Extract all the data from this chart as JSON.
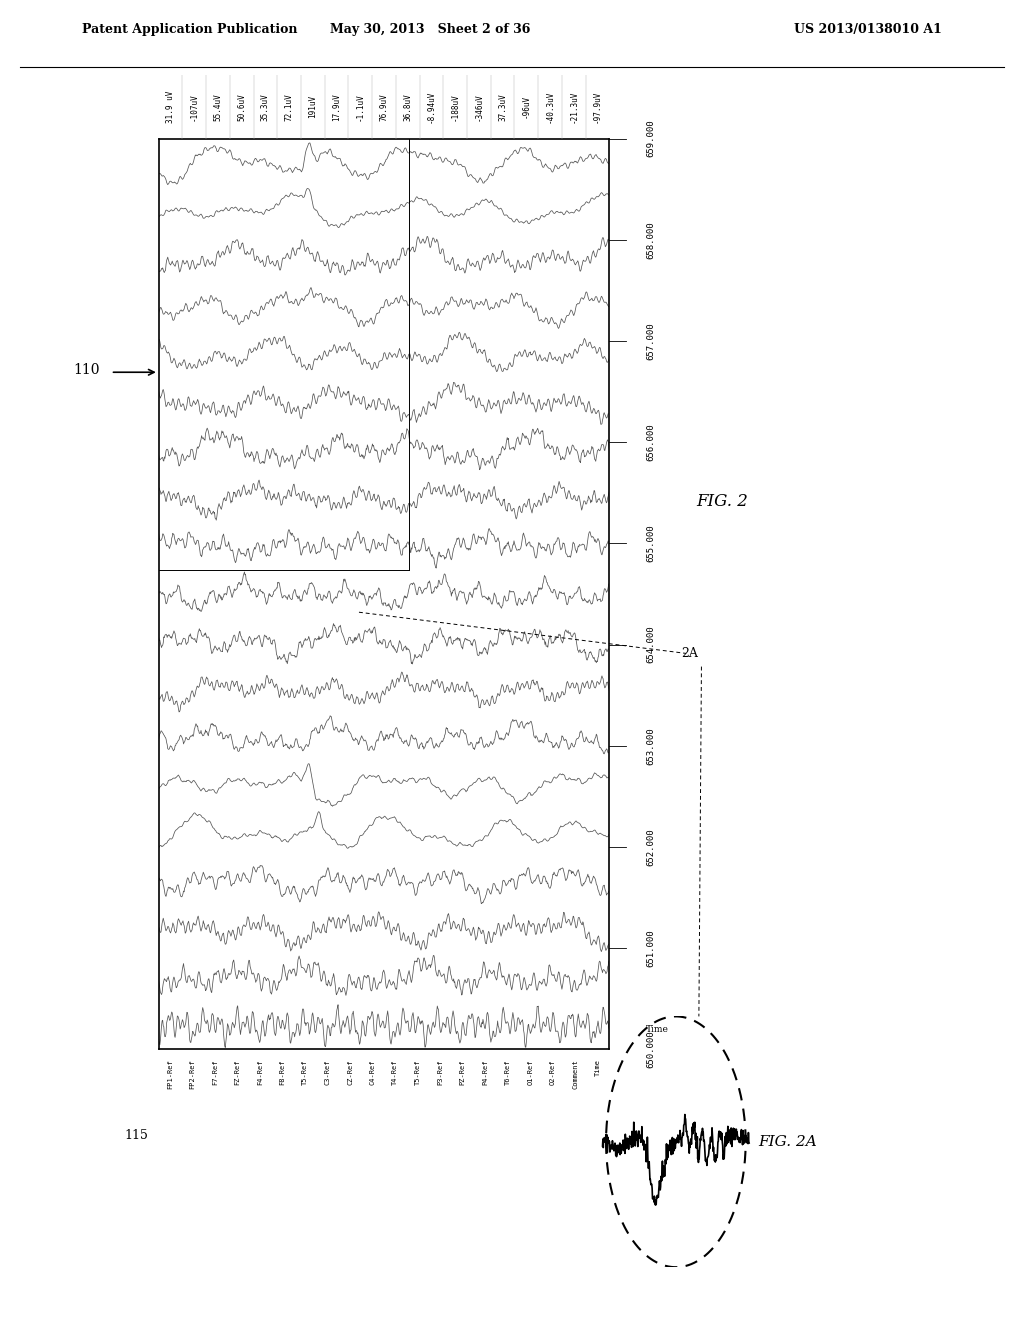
{
  "header_left": "Patent Application Publication",
  "header_center": "May 30, 2013   Sheet 2 of 36",
  "header_right": "US 2013/0138010 A1",
  "figure_label": "FIG. 2",
  "figure_2a_label": "FIG. 2A",
  "label_110": "110",
  "label_115": "115",
  "label_2a": "2A",
  "channel_labels": [
    "FP1-Ref",
    "FP2-Ref",
    "F7-Ref",
    "FZ-Ref",
    "F4-Ref",
    "F8-Ref",
    "T5-Ref",
    "C3-Ref",
    "CZ-Ref",
    "C4-Ref",
    "T4-Ref",
    "T5-Ref",
    "P3-Ref",
    "PZ-Ref",
    "P4-Ref",
    "T6-Ref",
    "O1-Ref",
    "O2-Ref",
    "Comment",
    "Time"
  ],
  "voltage_labels": [
    "31.9 uV",
    "-107uV",
    "55.4uV",
    "50.6uV",
    "35.3uV",
    "72.1uV",
    "191uV",
    "17.9uV",
    "-1.1uV",
    "76.9uV",
    "36.8uV",
    "-8.94uV",
    "-188uV",
    "-346uV",
    "37.3uV",
    "-96uV",
    "-40.3uV",
    "-21.3uV",
    "-97.9uV"
  ],
  "time_labels": [
    "650.000",
    "651.000",
    "652.000",
    "653.000",
    "654.000",
    "655.000",
    "656.000",
    "657.000",
    "658.000",
    "659.000"
  ],
  "time_axis_label": "Time",
  "bg_color": "#ffffff",
  "line_color": "#555555"
}
